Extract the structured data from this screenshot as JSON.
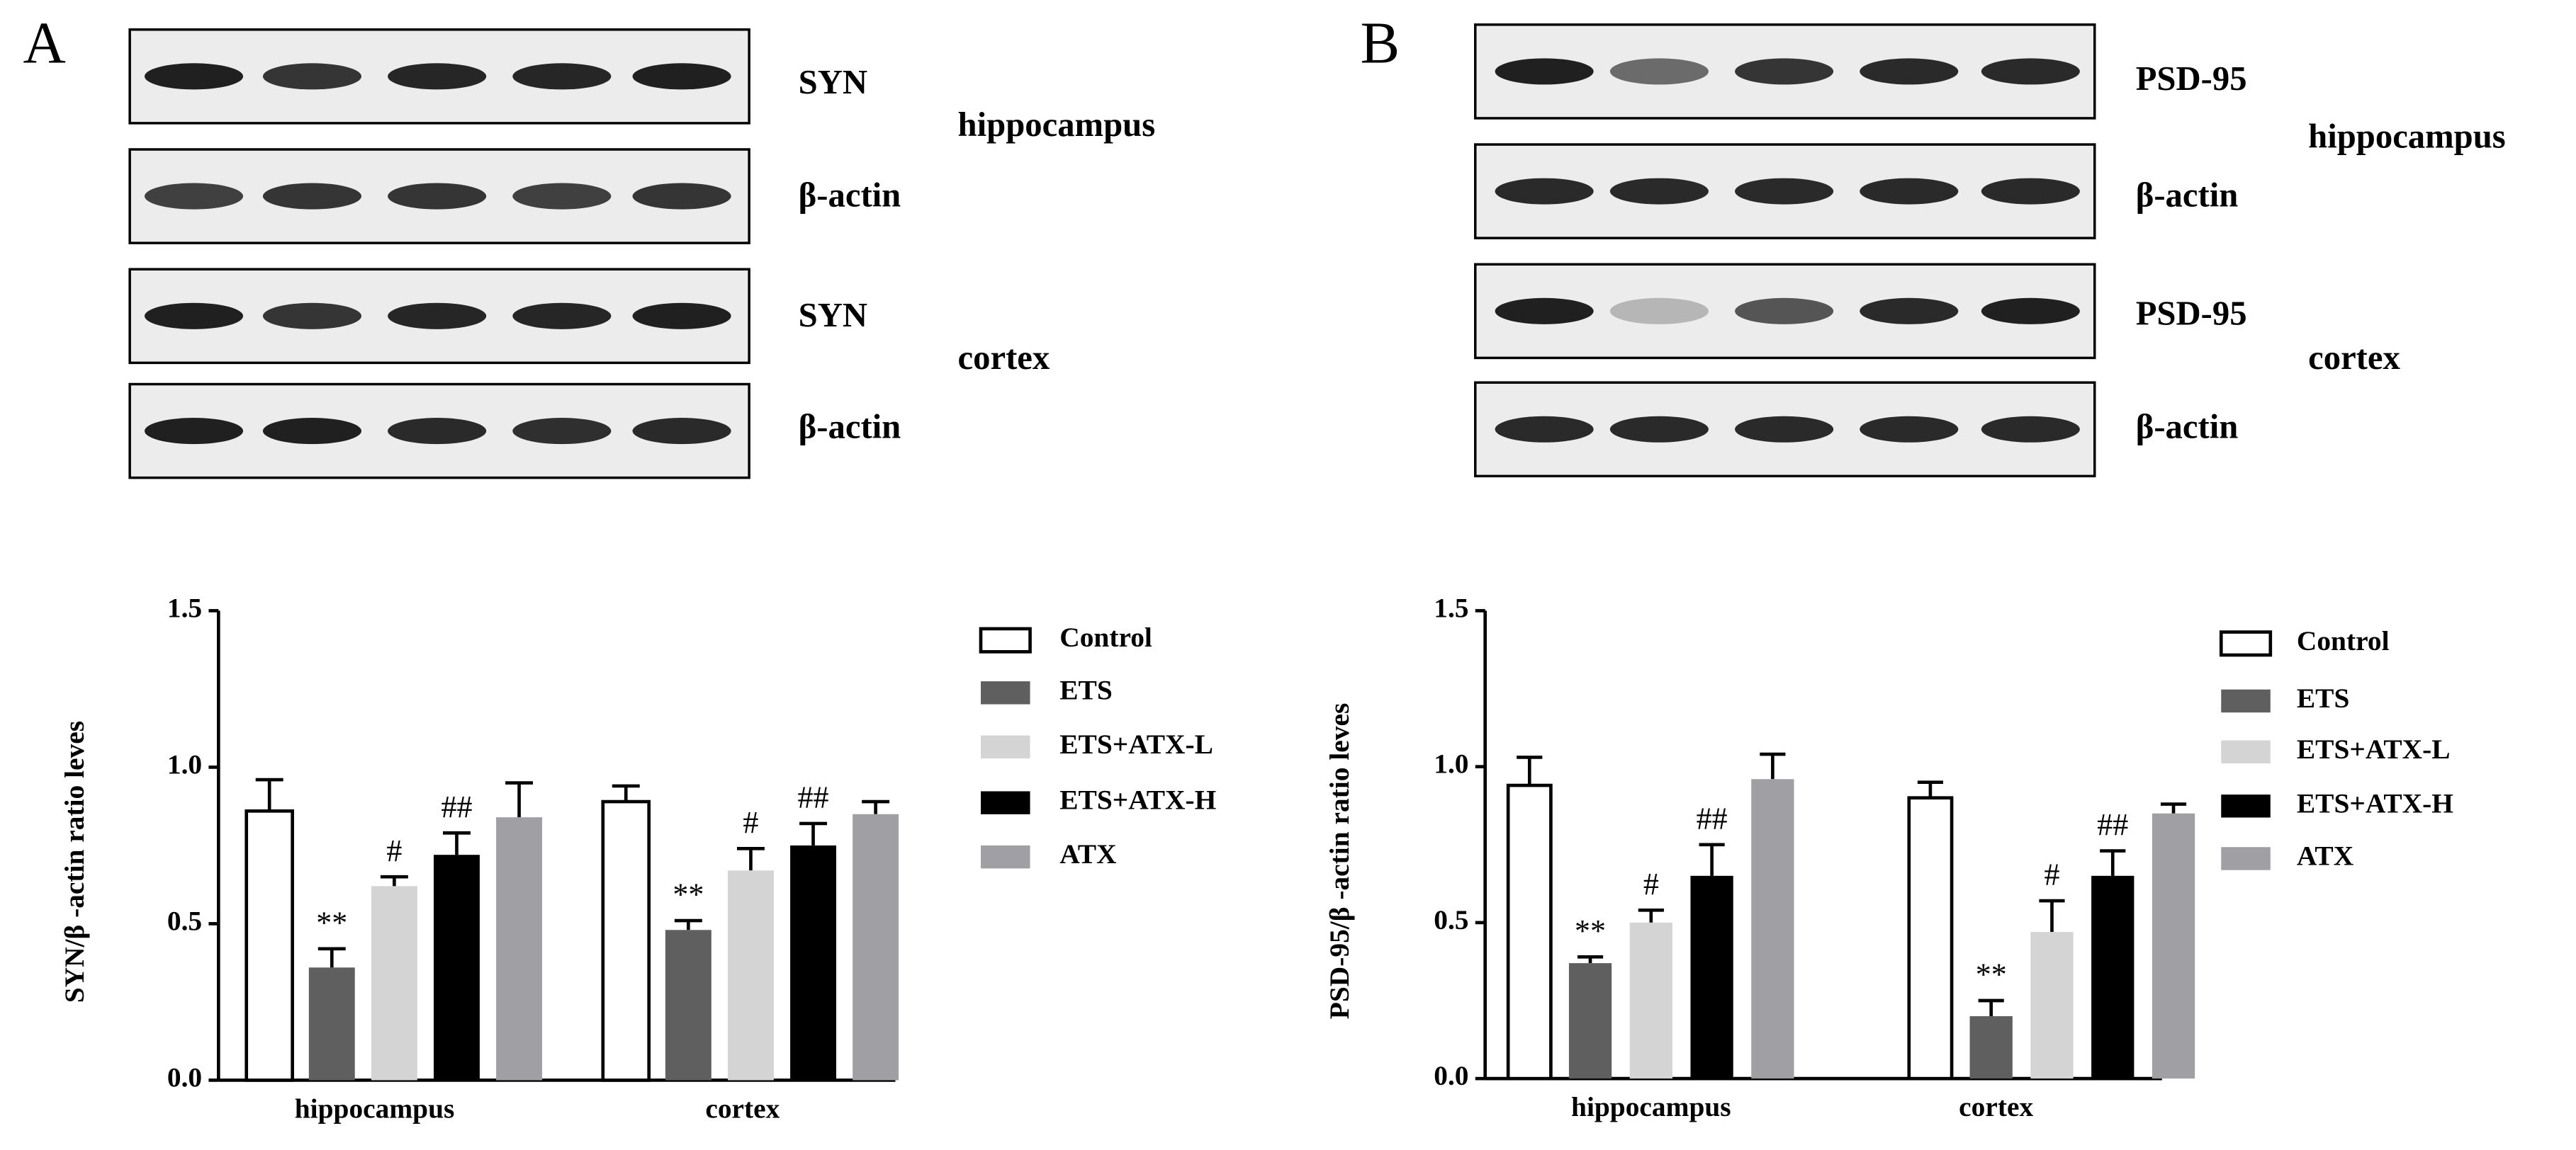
{
  "panels": [
    {
      "label": "A",
      "blots": [
        "SYN",
        "β-actin",
        "SYN",
        "β-actin"
      ],
      "regions": [
        "hippocampus",
        "cortex"
      ]
    },
    {
      "label": "B",
      "blots": [
        "PSD-95",
        "β-actin",
        "PSD-95",
        "β-actin"
      ],
      "regions": [
        "hippocampus",
        "cortex"
      ]
    }
  ],
  "chart_data": [
    {
      "type": "bar",
      "ylabel": "SYN/β -actin ratio leves",
      "categories": [
        "hippocampus",
        "cortex"
      ],
      "ylim": [
        0,
        1.5
      ],
      "yticks": [
        {
          "value": 0,
          "label": "0.0"
        },
        0.5,
        {
          "value": 1,
          "label": "1.0"
        },
        1.5
      ],
      "series": [
        {
          "name": "Control",
          "color": "#ffffff",
          "values": [
            0.86,
            0.89
          ],
          "errors": [
            0.1,
            0.05
          ]
        },
        {
          "name": "ETS",
          "color": "#5f5f5f",
          "values": [
            0.36,
            0.48
          ],
          "errors": [
            0.06,
            0.03
          ],
          "annotations": [
            "**",
            "**"
          ]
        },
        {
          "name": "ETS+ATX-L",
          "color": "#d4d4d4",
          "values": [
            0.62,
            0.67
          ],
          "errors": [
            0.03,
            0.07
          ],
          "annotations": [
            "#",
            "#"
          ]
        },
        {
          "name": "ETS+ATX-H",
          "color": "#000000",
          "values": [
            0.72,
            0.75
          ],
          "errors": [
            0.07,
            0.07
          ],
          "annotations": [
            "##",
            "##"
          ]
        },
        {
          "name": "ATX",
          "color": "#a0a0a4",
          "values": [
            0.84,
            0.85
          ],
          "errors": [
            0.11,
            0.04
          ]
        }
      ]
    },
    {
      "type": "bar",
      "ylabel": "PSD-95/β -actin ratio leves",
      "categories": [
        "hippocampus",
        "cortex"
      ],
      "ylim": [
        0,
        1.5
      ],
      "yticks": [
        {
          "value": 0,
          "label": "0.0"
        },
        0.5,
        {
          "value": 1,
          "label": "1.0"
        },
        1.5
      ],
      "series": [
        {
          "name": "Control",
          "color": "#ffffff",
          "values": [
            0.94,
            0.9
          ],
          "errors": [
            0.09,
            0.05
          ]
        },
        {
          "name": "ETS",
          "color": "#5f5f5f",
          "values": [
            0.37,
            0.2
          ],
          "errors": [
            0.02,
            0.05
          ],
          "annotations": [
            "**",
            "**"
          ]
        },
        {
          "name": "ETS+ATX-L",
          "color": "#d4d4d4",
          "values": [
            0.5,
            0.47
          ],
          "errors": [
            0.04,
            0.1
          ],
          "annotations": [
            "#",
            "#"
          ]
        },
        {
          "name": "ETS+ATX-H",
          "color": "#000000",
          "values": [
            0.65,
            0.65
          ],
          "errors": [
            0.1,
            0.08
          ],
          "annotations": [
            "##",
            "##"
          ]
        },
        {
          "name": "ATX",
          "color": "#a0a0a4",
          "values": [
            0.96,
            0.85
          ],
          "errors": [
            0.08,
            0.03
          ]
        }
      ]
    }
  ]
}
